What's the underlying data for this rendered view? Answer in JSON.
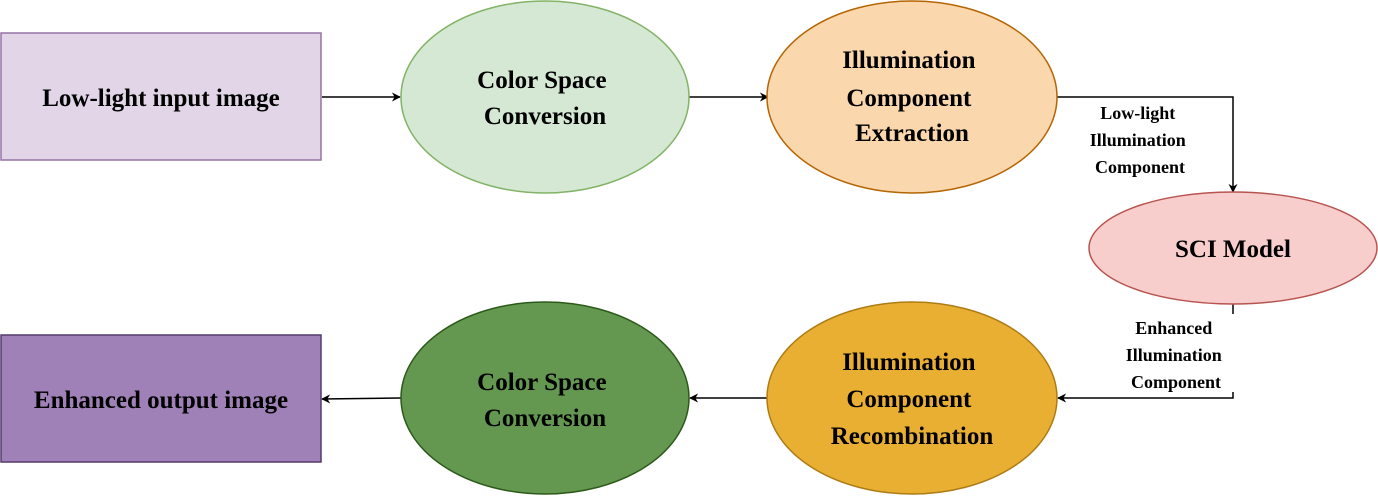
{
  "nodes": {
    "input_image": {
      "label": "Low-light input image",
      "fill": "#e1d5e7",
      "stroke": "#9673a6"
    },
    "color_space_conversion_1": {
      "label_lines": [
        "Color Space",
        "Conversion"
      ],
      "fill": "#d5e8d4",
      "stroke": "#82b366"
    },
    "illumination_extraction": {
      "label_lines": [
        "Illumination",
        "Component",
        "Extraction"
      ],
      "fill": "#fad7ac",
      "stroke": "#b46504"
    },
    "sci_model": {
      "label": "SCI Model",
      "fill": "#f8cecc",
      "stroke": "#b85450"
    },
    "illumination_recombination": {
      "label_lines": [
        "Illumination",
        "Component",
        "Recombination"
      ],
      "fill": "#e9af33",
      "stroke": "#ae7c15"
    },
    "color_space_conversion_2": {
      "label_lines": [
        "Color Space",
        "Conversion"
      ],
      "fill": "#649850",
      "stroke": "#2d5a1b"
    },
    "output_image": {
      "label": "Enhanced output image",
      "fill": "#9f81b8",
      "stroke": "#553a6e"
    }
  },
  "edges": {
    "low_light_component": {
      "label_lines": [
        "Low-light",
        "Illumination",
        "Component"
      ]
    },
    "enhanced_component": {
      "label_lines": [
        "Enhanced",
        "Illumination",
        "Component"
      ]
    }
  },
  "colors": {
    "edge": "#000000"
  }
}
